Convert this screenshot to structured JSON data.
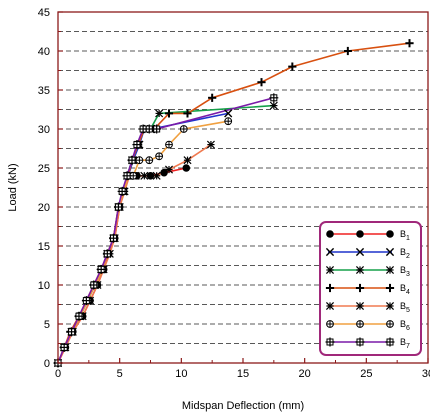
{
  "chart_data": {
    "type": "line",
    "title": "",
    "xlabel": "Midspan Deflection (mm)",
    "ylabel": "Load (kN)",
    "xlim": [
      0,
      30
    ],
    "ylim": [
      0,
      45
    ],
    "xticks": [
      0,
      5,
      10,
      15,
      20,
      25,
      30
    ],
    "yticks": [
      0,
      5,
      10,
      15,
      20,
      25,
      30,
      35,
      40,
      45
    ],
    "x_tick_labels": [
      "0",
      "5",
      "10",
      "15",
      "20",
      "25",
      "30"
    ],
    "y_tick_labels": [
      "0",
      "5",
      "10",
      "15",
      "20",
      "25",
      "30",
      "35",
      "40",
      "45"
    ],
    "grid": "horizontal dashed every 2.5 kN",
    "legend_position": "bottom-right",
    "axis_color": "#8b1a1a",
    "legend_border_color": "#a0287a",
    "series": [
      {
        "name": "B1",
        "label_base": "B",
        "label_sub": "1",
        "color": "#ef2020",
        "marker": "filled-circle",
        "x": [
          0,
          0.6,
          1.2,
          2.0,
          2.6,
          3.2,
          3.7,
          4.1,
          4.6,
          5.0,
          5.3,
          5.7,
          6.4,
          7.5,
          8.6,
          10.4
        ],
        "y": [
          0,
          2,
          4,
          6,
          8,
          10,
          12,
          14,
          16,
          20,
          22,
          24,
          24,
          24,
          24.4,
          25
        ]
      },
      {
        "name": "B2",
        "label_base": "B",
        "label_sub": "2",
        "color": "#1f33cc",
        "marker": "x",
        "x": [
          0,
          0.5,
          1.1,
          1.8,
          2.4,
          3.0,
          3.5,
          4.0,
          4.5,
          4.9,
          5.3,
          5.7,
          6.1,
          6.6,
          7.0,
          7.6,
          13.8
        ],
        "y": [
          0,
          2,
          4,
          6,
          8,
          10,
          12,
          14,
          16,
          20,
          22,
          24,
          26,
          28,
          30,
          30,
          32
        ]
      },
      {
        "name": "B3",
        "label_base": "B",
        "label_sub": "3",
        "color": "#16a04a",
        "marker": "asterisk",
        "x": [
          0,
          0.5,
          1.1,
          1.8,
          2.4,
          3.0,
          3.6,
          4.0,
          4.5,
          5.0,
          5.3,
          5.6,
          6.0,
          6.5,
          7.0,
          7.5,
          8.2,
          17.5
        ],
        "y": [
          0,
          2,
          4,
          6,
          8,
          10,
          12,
          14,
          16,
          20,
          22,
          24,
          26,
          28,
          30,
          30,
          32,
          33
        ]
      },
      {
        "name": "B4",
        "label_base": "B",
        "label_sub": "4",
        "color": "#d85010",
        "marker": "plus",
        "x": [
          0,
          0.5,
          1.0,
          1.7,
          2.3,
          2.9,
          3.5,
          4.0,
          4.5,
          4.9,
          5.3,
          5.7,
          6.0,
          6.5,
          7.0,
          7.8,
          9.0,
          10.5,
          12.5,
          16.5,
          19.0,
          23.5,
          28.5
        ],
        "y": [
          0,
          2,
          4,
          6,
          8,
          10,
          12,
          14,
          16,
          20,
          22,
          24,
          26,
          28,
          30,
          30,
          32,
          32,
          34,
          36,
          38,
          40,
          41
        ]
      },
      {
        "name": "B5",
        "label_base": "B",
        "label_sub": "5",
        "color": "#f07a50",
        "marker": "asterisk",
        "x": [
          0,
          0.6,
          1.2,
          2.0,
          2.6,
          3.2,
          3.7,
          4.2,
          4.6,
          5.0,
          5.4,
          5.8,
          6.3,
          7.0,
          8.0,
          9.0,
          10.5,
          12.4
        ],
        "y": [
          0,
          2,
          4,
          6,
          8,
          10,
          12,
          14,
          16,
          20,
          22,
          24,
          24,
          24,
          24,
          24.8,
          26,
          28
        ]
      },
      {
        "name": "B6",
        "label_base": "B",
        "label_sub": "6",
        "color": "#f0a040",
        "marker": "circle-plus",
        "x": [
          0,
          0.5,
          1.1,
          1.8,
          2.4,
          3.0,
          3.6,
          4.0,
          4.5,
          4.9,
          5.3,
          5.7,
          6.1,
          6.6,
          7.4,
          8.2,
          9.0,
          10.2,
          13.8
        ],
        "y": [
          0,
          2,
          4,
          6,
          8,
          10,
          12,
          14,
          16,
          20,
          22,
          24,
          24,
          26,
          26,
          26.5,
          28,
          30,
          31
        ]
      },
      {
        "name": "B7",
        "label_base": "B",
        "label_sub": "7",
        "color": "#7a1aa8",
        "marker": "square-plus",
        "x": [
          0,
          0.5,
          1.1,
          1.7,
          2.3,
          2.9,
          3.5,
          4.0,
          4.5,
          4.9,
          5.2,
          5.6,
          6.0,
          6.4,
          6.9,
          7.4,
          8.0,
          17.5
        ],
        "y": [
          0,
          2,
          4,
          6,
          8,
          10,
          12,
          14,
          16,
          20,
          22,
          24,
          26,
          28,
          30,
          30,
          30,
          34
        ]
      }
    ]
  }
}
